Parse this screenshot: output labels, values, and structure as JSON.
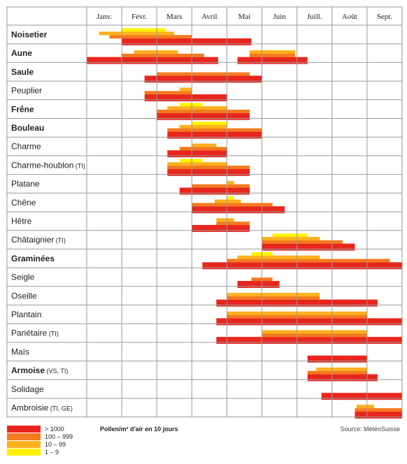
{
  "chart_data": {
    "type": "bar",
    "subtype": "pollen-calendar",
    "months": [
      "Janv.",
      "Févr.",
      "Mars",
      "Avril",
      "Mai",
      "Juin",
      "Juill.",
      "Août",
      "Sept."
    ],
    "levels": [
      {
        "label": "> 1000",
        "color": "#e8261e"
      },
      {
        "label": "100 – 999",
        "color": "#f47a20"
      },
      {
        "label": "10 – 99",
        "color": "#fbb01e"
      },
      {
        "label": "1 – 9",
        "color": "#fff200"
      }
    ],
    "plants": [
      {
        "name": "Noisetier",
        "note": "",
        "bold": true,
        "bars": [
          [
            [
              1.0,
              4.7
            ]
          ],
          [
            [
              0.65,
              3.0
            ]
          ],
          [
            [
              0.35,
              2.5
            ]
          ],
          [
            [
              1.0,
              2.25
            ]
          ]
        ]
      },
      {
        "name": "Aune",
        "note": "",
        "bold": true,
        "bars": [
          [
            [
              0.0,
              3.75
            ],
            [
              4.3,
              6.3
            ]
          ],
          [
            [
              1.0,
              3.35
            ],
            [
              4.65,
              5.95
            ]
          ],
          [
            [
              1.35,
              2.6
            ],
            [
              4.65,
              5.95
            ]
          ],
          []
        ]
      },
      {
        "name": "Saule",
        "note": "",
        "bold": true,
        "bars": [
          [
            [
              1.65,
              5.0
            ]
          ],
          [
            [
              2.0,
              4.65
            ]
          ],
          [],
          []
        ]
      },
      {
        "name": "Peuplier",
        "note": "",
        "bold": false,
        "bars": [
          [
            [
              1.65,
              4.0
            ]
          ],
          [
            [
              1.65,
              3.0
            ]
          ],
          [
            [
              2.65,
              3.0
            ]
          ],
          []
        ]
      },
      {
        "name": "Frêne",
        "note": "",
        "bold": true,
        "bars": [
          [
            [
              2.0,
              4.65
            ]
          ],
          [
            [
              2.0,
              4.65
            ]
          ],
          [
            [
              2.3,
              4.0
            ]
          ],
          [
            [
              2.65,
              3.3
            ]
          ]
        ]
      },
      {
        "name": "Bouleau",
        "note": "",
        "bold": true,
        "bars": [
          [
            [
              2.3,
              5.0
            ]
          ],
          [
            [
              2.3,
              5.0
            ]
          ],
          [
            [
              2.65,
              4.0
            ]
          ],
          [
            [
              3.0,
              4.0
            ]
          ]
        ]
      },
      {
        "name": "Charme",
        "note": "",
        "bold": false,
        "bars": [
          [
            [
              2.3,
              4.0
            ]
          ],
          [
            [
              2.65,
              4.0
            ]
          ],
          [
            [
              3.0,
              3.7
            ]
          ],
          []
        ]
      },
      {
        "name": "Charme-houblon",
        "note": "(TI)",
        "bold": false,
        "bars": [
          [
            [
              2.3,
              4.65
            ]
          ],
          [
            [
              2.3,
              4.65
            ]
          ],
          [
            [
              2.3,
              4.0
            ]
          ],
          [
            [
              2.65,
              3.3
            ]
          ]
        ]
      },
      {
        "name": "Platane",
        "note": "",
        "bold": false,
        "bars": [
          [
            [
              2.65,
              4.65
            ]
          ],
          [
            [
              3.0,
              4.65
            ]
          ],
          [
            [
              4.0,
              4.2
            ]
          ],
          []
        ]
      },
      {
        "name": "Chêne",
        "note": "",
        "bold": false,
        "bars": [
          [
            [
              3.0,
              5.65
            ]
          ],
          [
            [
              3.0,
              5.3
            ]
          ],
          [
            [
              3.65,
              4.4
            ]
          ],
          [
            [
              4.0,
              4.2
            ]
          ]
        ]
      },
      {
        "name": "Hêtre",
        "note": "",
        "bold": false,
        "bars": [
          [
            [
              3.0,
              4.65
            ]
          ],
          [
            [
              3.7,
              4.65
            ]
          ],
          [
            [
              3.7,
              4.2
            ]
          ],
          []
        ]
      },
      {
        "name": "Châtaignier",
        "note": "(TI)",
        "bold": false,
        "bars": [
          [
            [
              5.0,
              7.65
            ]
          ],
          [
            [
              5.0,
              7.3
            ]
          ],
          [
            [
              5.0,
              6.65
            ]
          ],
          [
            [
              5.3,
              6.3
            ]
          ]
        ]
      },
      {
        "name": "Graminées",
        "note": "",
        "bold": true,
        "bars": [
          [
            [
              3.3,
              9.0
            ]
          ],
          [
            [
              4.0,
              8.65
            ]
          ],
          [
            [
              4.3,
              6.65
            ]
          ],
          [
            [
              4.7,
              5.3
            ]
          ]
        ]
      },
      {
        "name": "Seigle",
        "note": "",
        "bold": false,
        "bars": [
          [
            [
              4.3,
              5.5
            ]
          ],
          [
            [
              4.7,
              5.3
            ]
          ],
          [],
          []
        ]
      },
      {
        "name": "Oseille",
        "note": "",
        "bold": false,
        "bars": [
          [
            [
              3.7,
              8.3
            ]
          ],
          [
            [
              4.0,
              6.65
            ]
          ],
          [
            [
              4.0,
              6.65
            ]
          ],
          []
        ]
      },
      {
        "name": "Plantain",
        "note": "",
        "bold": false,
        "bars": [
          [
            [
              3.7,
              9.0
            ]
          ],
          [
            [
              4.0,
              8.0
            ]
          ],
          [
            [
              4.0,
              8.0
            ]
          ],
          []
        ]
      },
      {
        "name": "Pariétaire",
        "note": "(TI)",
        "bold": false,
        "bars": [
          [
            [
              3.7,
              9.0
            ]
          ],
          [
            [
              5.0,
              8.0
            ]
          ],
          [
            [
              5.0,
              8.0
            ]
          ],
          []
        ]
      },
      {
        "name": "Maïs",
        "note": "",
        "bold": false,
        "bars": [
          [
            [
              6.3,
              8.0
            ]
          ],
          [],
          [],
          []
        ]
      },
      {
        "name": "Armoise",
        "note": "(VS, TI)",
        "bold": true,
        "bars": [
          [
            [
              6.3,
              8.3
            ]
          ],
          [
            [
              6.3,
              8.0
            ]
          ],
          [
            [
              6.55,
              8.0
            ]
          ],
          []
        ]
      },
      {
        "name": "Solidage",
        "note": "",
        "bold": false,
        "bars": [
          [
            [
              6.7,
              9.0
            ]
          ],
          [],
          [],
          []
        ]
      },
      {
        "name": "Ambroisie",
        "note": "(TI, GE)",
        "bold": false,
        "bars": [
          [
            [
              7.65,
              9.0
            ]
          ],
          [
            [
              7.65,
              9.0
            ]
          ],
          [
            [
              7.7,
              8.2
            ]
          ],
          []
        ]
      }
    ]
  },
  "legend_title": "Pollen/m³ d'air en 10 jours",
  "source": "Source: MétéoSuisse"
}
